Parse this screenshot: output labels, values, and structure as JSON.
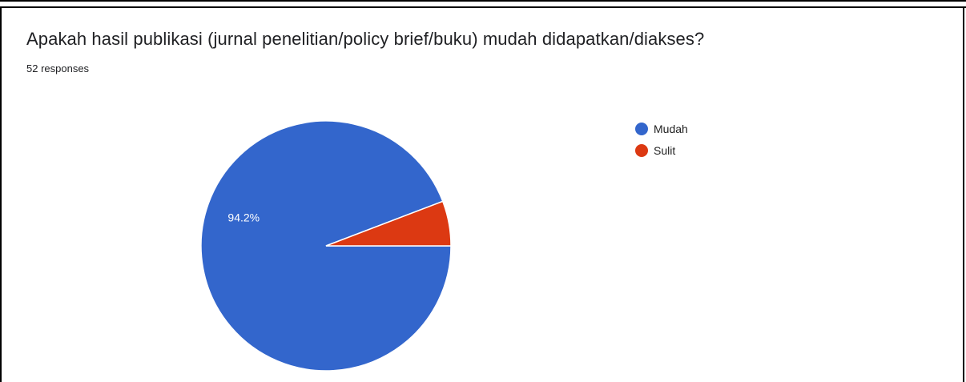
{
  "question": {
    "title": "Apakah hasil publikasi (jurnal penelitian/policy brief/buku) mudah didapatkan/diakses?",
    "responses_label": "52 responses"
  },
  "chart_data": {
    "type": "pie",
    "title": "Apakah hasil publikasi (jurnal penelitian/policy brief/buku) mudah didapatkan/diakses?",
    "total_responses": 52,
    "slices": [
      {
        "label": "Mudah",
        "count": 49,
        "percent": 94.2,
        "data_label": "94.2%",
        "color": "#3366cc"
      },
      {
        "label": "Sulit",
        "count": 3,
        "percent": 5.8,
        "data_label": "",
        "color": "#dc3912"
      }
    ],
    "legend_position": "right"
  },
  "legend": {
    "items": [
      {
        "label": "Mudah",
        "color": "#3366cc"
      },
      {
        "label": "Sulit",
        "color": "#dc3912"
      }
    ]
  }
}
